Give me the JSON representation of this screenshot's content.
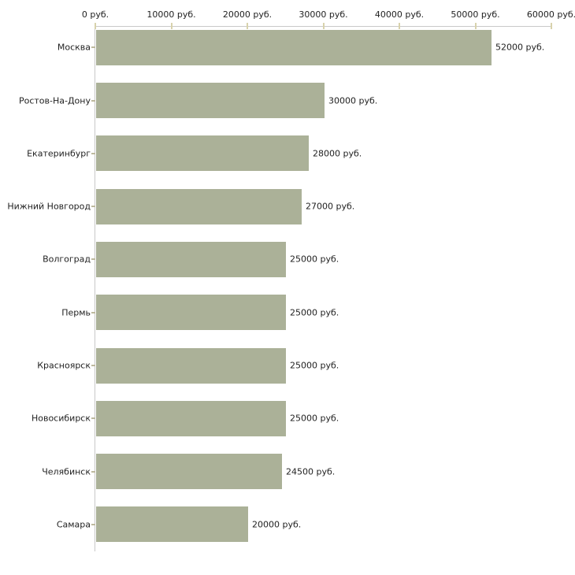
{
  "chart_data": {
    "type": "bar",
    "orientation": "horizontal",
    "categories": [
      "Москва",
      "Ростов-На-Дону",
      "Екатеринбург",
      "Нижний Новгород",
      "Волгоград",
      "Пермь",
      "Красноярск",
      "Новосибирск",
      "Челябинск",
      "Самара"
    ],
    "values": [
      52000,
      30000,
      28000,
      27000,
      25000,
      25000,
      25000,
      25000,
      24500,
      20000
    ],
    "value_labels": [
      "52000 руб.",
      "30000 руб.",
      "28000 руб.",
      "27000 руб.",
      "25000 руб.",
      "25000 руб.",
      "25000 руб.",
      "25000 руб.",
      "24500 руб.",
      "20000 руб."
    ],
    "x_axis": {
      "position": "top",
      "range": [
        0,
        60000
      ],
      "ticks": [
        0,
        10000,
        20000,
        30000,
        40000,
        50000,
        60000
      ],
      "tick_labels": [
        "0 руб.",
        "10000 руб.",
        "20000 руб.",
        "30000 руб.",
        "40000 руб.",
        "50000 руб.",
        "60000 руб."
      ]
    },
    "grid": false,
    "legend": false,
    "colors": {
      "bar": "#abb198",
      "axis_line": "#c8c8c8",
      "axis_tick": "#d8d2ac",
      "category_tick": "#bdb99e",
      "text": "#222222",
      "background": "#ffffff"
    }
  }
}
